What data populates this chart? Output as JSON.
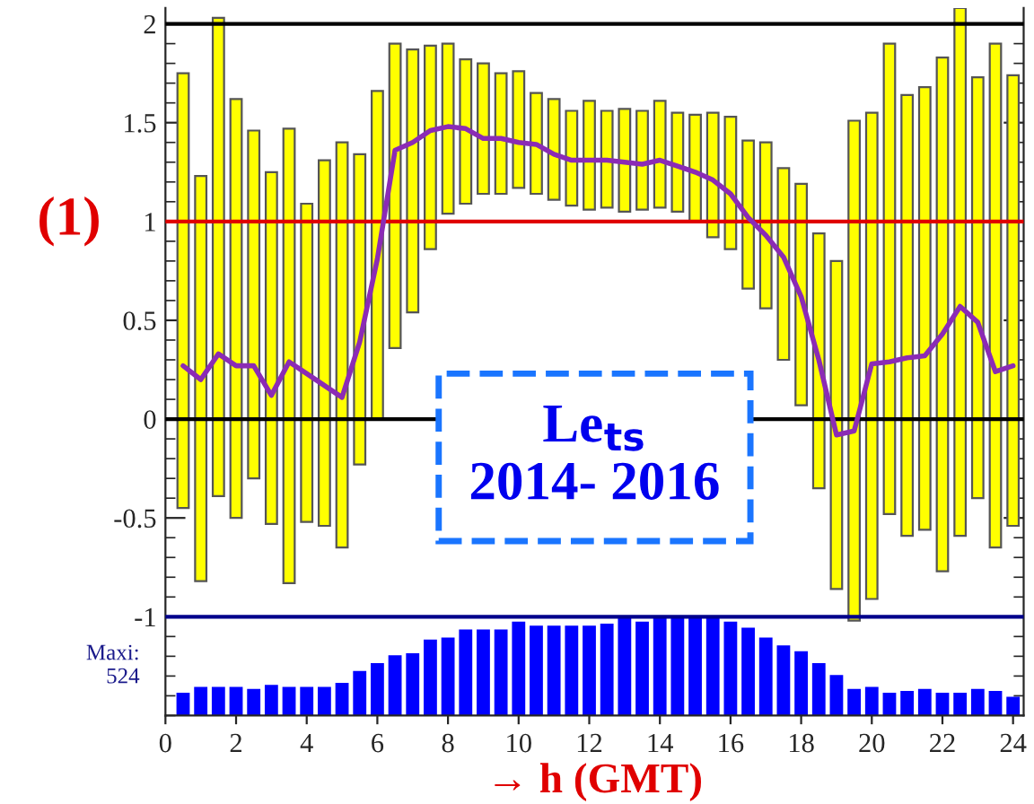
{
  "chart_data": {
    "type": "bar",
    "xlabel": "→ h (GMT)",
    "x": [
      0.5,
      1,
      1.5,
      2,
      2.5,
      3,
      3.5,
      4,
      4.5,
      5,
      5.5,
      6,
      6.5,
      7,
      7.5,
      8,
      8.5,
      9,
      9.5,
      10,
      10.5,
      11,
      11.5,
      12,
      12.5,
      13,
      13.5,
      14,
      14.5,
      15,
      15.5,
      16,
      16.5,
      17,
      17.5,
      18,
      18.5,
      19,
      19.5,
      20,
      20.5,
      21,
      21.5,
      22,
      22.5,
      23,
      23.5,
      24
    ],
    "xlim": [
      0,
      24.3
    ],
    "xticks": [
      0,
      2,
      4,
      6,
      8,
      10,
      12,
      14,
      16,
      18,
      20,
      22,
      24
    ],
    "ylim": [
      -1.5,
      2.08
    ],
    "yticks": [
      -1,
      -0.5,
      0,
      0.5,
      1,
      1.5,
      2
    ],
    "series": [
      {
        "color": "#ffff00",
        "base": [
          -0.45,
          -0.82,
          -0.39,
          -0.5,
          -0.3,
          -0.53,
          -0.83,
          -0.52,
          -0.54,
          -0.65,
          -0.23,
          0.0,
          0.36,
          0.54,
          0.86,
          1.04,
          1.09,
          1.14,
          1.14,
          1.17,
          1.14,
          1.11,
          1.08,
          1.06,
          1.07,
          1.05,
          1.06,
          1.07,
          1.05,
          1.0,
          0.92,
          0.86,
          0.66,
          0.56,
          0.3,
          0.07,
          -0.35,
          -0.86,
          -1.02,
          -0.91,
          -0.48,
          -0.59,
          -0.56,
          -0.77,
          -0.59,
          -0.4,
          -0.65,
          -0.54
        ],
        "values": [
          2.2,
          2.05,
          2.42,
          2.12,
          1.76,
          1.78,
          2.3,
          1.61,
          1.85,
          2.05,
          1.57,
          1.66,
          1.54,
          1.33,
          1.03,
          0.86,
          0.73,
          0.66,
          0.61,
          0.59,
          0.51,
          0.51,
          0.48,
          0.55,
          0.49,
          0.52,
          0.5,
          0.54,
          0.5,
          0.54,
          0.63,
          0.67,
          0.75,
          0.84,
          0.97,
          1.12,
          1.29,
          1.66,
          2.53,
          2.46,
          2.38,
          2.23,
          2.24,
          2.6,
          2.67,
          2.13,
          2.55,
          2.28
        ]
      },
      {
        "color": "#0000ff",
        "base": [
          -1.5,
          -1.5,
          -1.5,
          -1.5,
          -1.5,
          -1.5,
          -1.5,
          -1.5,
          -1.5,
          -1.5,
          -1.5,
          -1.5,
          -1.5,
          -1.5,
          -1.5,
          -1.5,
          -1.5,
          -1.5,
          -1.5,
          -1.5,
          -1.5,
          -1.5,
          -1.5,
          -1.5,
          -1.5,
          -1.5,
          -1.5,
          -1.5,
          -1.5,
          -1.5,
          -1.5,
          -1.5,
          -1.5,
          -1.5,
          -1.5,
          -1.5,
          -1.5,
          -1.5,
          -1.5,
          -1.5,
          -1.5,
          -1.5,
          -1.5,
          -1.5,
          -1.5,
          -1.5,
          -1.5,
          -1.5
        ],
        "values": [
          0.11,
          0.14,
          0.14,
          0.14,
          0.13,
          0.15,
          0.14,
          0.14,
          0.14,
          0.16,
          0.22,
          0.26,
          0.3,
          0.31,
          0.38,
          0.39,
          0.43,
          0.43,
          0.43,
          0.47,
          0.45,
          0.45,
          0.45,
          0.45,
          0.46,
          0.49,
          0.47,
          0.49,
          0.49,
          0.49,
          0.49,
          0.47,
          0.44,
          0.39,
          0.35,
          0.32,
          0.26,
          0.2,
          0.13,
          0.14,
          0.11,
          0.12,
          0.13,
          0.11,
          0.11,
          0.13,
          0.12,
          0.09
        ]
      },
      {
        "type": "line",
        "color": "#8b2bb5",
        "values": [
          0.27,
          0.2,
          0.33,
          0.27,
          0.27,
          0.12,
          0.29,
          0.23,
          0.17,
          0.11,
          0.39,
          0.81,
          1.36,
          1.4,
          1.46,
          1.48,
          1.47,
          1.42,
          1.42,
          1.4,
          1.39,
          1.34,
          1.31,
          1.31,
          1.31,
          1.3,
          1.29,
          1.31,
          1.28,
          1.25,
          1.21,
          1.14,
          1.02,
          0.93,
          0.82,
          0.62,
          0.3,
          -0.08,
          -0.06,
          0.28,
          0.29,
          0.31,
          0.32,
          0.43,
          0.57,
          0.49,
          0.24,
          0.27
        ]
      }
    ],
    "ref_lines": [
      {
        "axis": "y",
        "value": 2,
        "color": "#000000"
      },
      {
        "axis": "y",
        "value": 0,
        "color": "#000000"
      },
      {
        "axis": "y",
        "value": 1,
        "color": "#e00000",
        "label": "(1)"
      },
      {
        "axis": "y",
        "value": -1,
        "color": "#00008b"
      }
    ],
    "annotations": [
      "Le$_{ts}$\n2014- 2016",
      "Maxi:\n524"
    ],
    "grid": false,
    "legend": false,
    "line_style": "solid",
    "marker": "none"
  }
}
